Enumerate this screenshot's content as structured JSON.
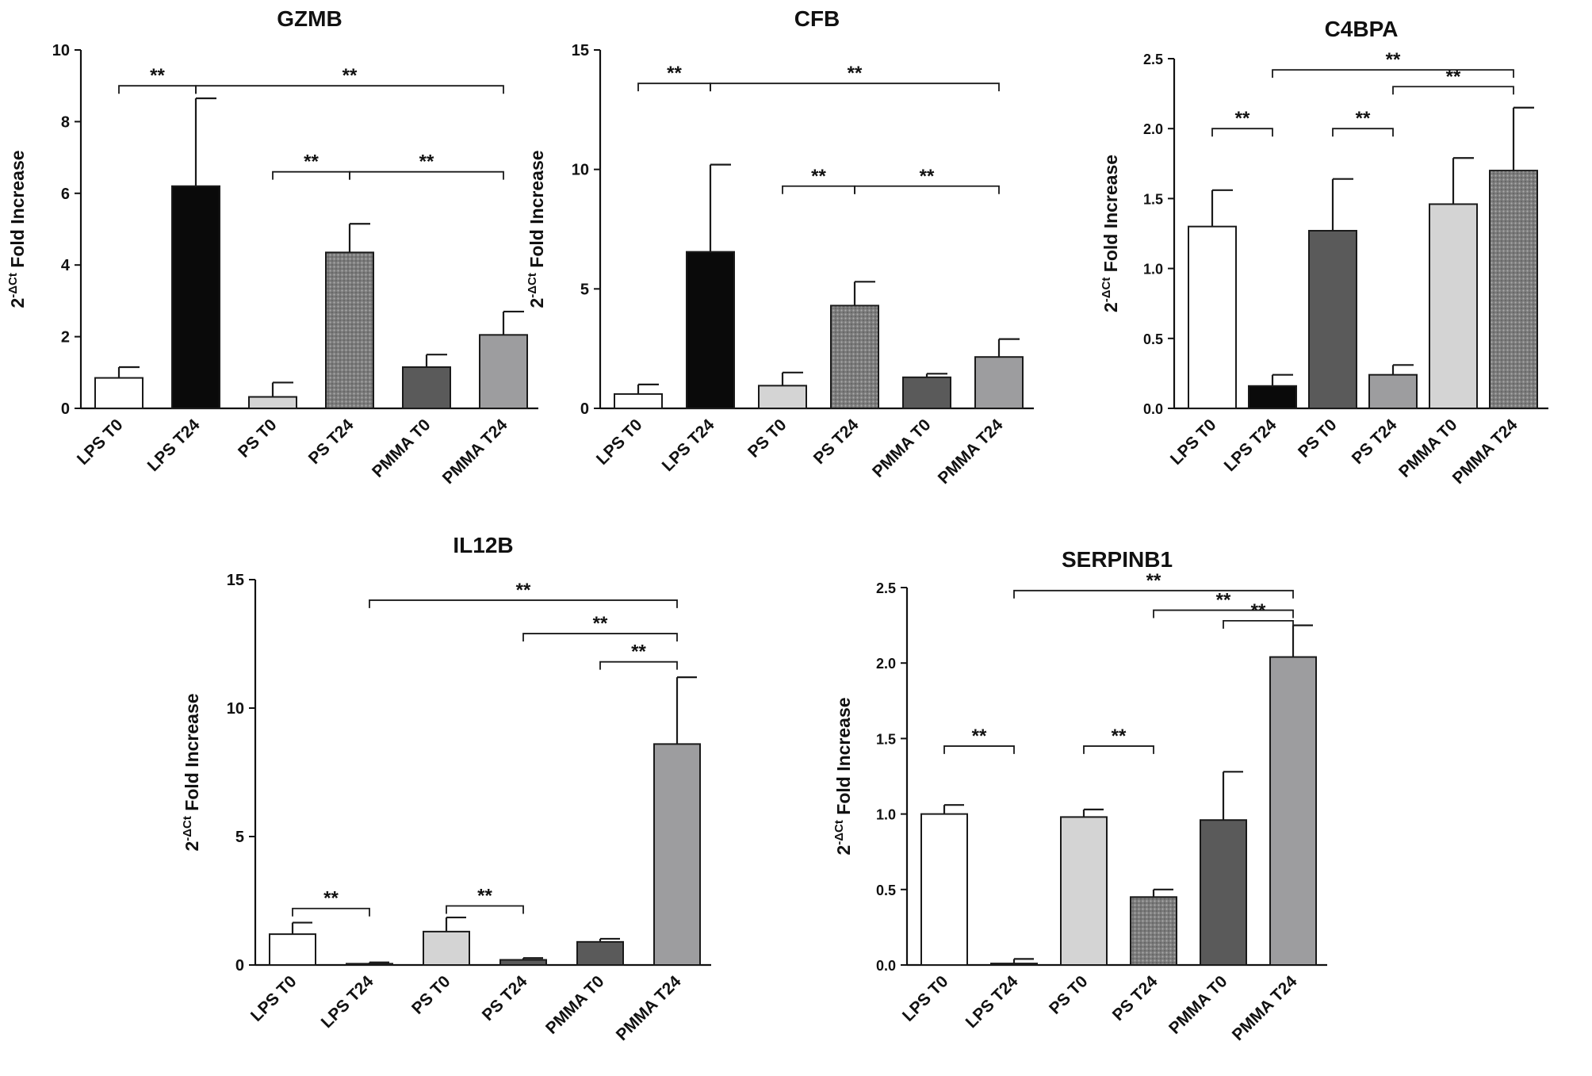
{
  "chart_data": [
    {
      "type": "bar",
      "title": "GZMB",
      "ylabel_base": "2",
      "ylabel_sup": "-ΔCt",
      "ylabel_rest": " Fold Increase",
      "ylim": [
        0,
        10
      ],
      "yticks": [
        0,
        2,
        4,
        6,
        8,
        10
      ],
      "categories": [
        "LPS T0",
        "LPS T24",
        "PS T0",
        "PS T24",
        "PMMA T0",
        "PMMA T24"
      ],
      "values": [
        0.85,
        6.2,
        0.32,
        4.35,
        1.15,
        2.05
      ],
      "errors": [
        0.3,
        2.45,
        0.4,
        0.8,
        0.35,
        0.65
      ],
      "fills": [
        "white",
        "black",
        "lightgray",
        "dotted",
        "darkgray",
        "midgray"
      ],
      "significance": [
        {
          "from": 0,
          "to": 1,
          "y": 9.0,
          "label": "**"
        },
        {
          "from": 1,
          "to": 5,
          "y": 9.0,
          "label": "**"
        },
        {
          "from": 2,
          "to": 3,
          "y": 6.6,
          "label": "**"
        },
        {
          "from": 3,
          "to": 5,
          "y": 6.6,
          "label": "**"
        }
      ]
    },
    {
      "type": "bar",
      "title": "CFB",
      "ylabel_base": "2",
      "ylabel_sup": "-ΔCt",
      "ylabel_rest": " Fold Increase",
      "ylim": [
        0,
        15
      ],
      "yticks": [
        0,
        5,
        10,
        15
      ],
      "categories": [
        "LPS T0",
        "LPS T24",
        "PS T0",
        "PS T24",
        "PMMA T0",
        "PMMA T24"
      ],
      "values": [
        0.6,
        6.55,
        0.95,
        4.3,
        1.3,
        2.15
      ],
      "errors": [
        0.4,
        3.65,
        0.55,
        1.0,
        0.15,
        0.75
      ],
      "fills": [
        "white",
        "black",
        "lightgray",
        "dotted",
        "darkgray",
        "midgray"
      ],
      "significance": [
        {
          "from": 0,
          "to": 1,
          "y": 13.6,
          "label": "**"
        },
        {
          "from": 1,
          "to": 5,
          "y": 13.6,
          "label": "**"
        },
        {
          "from": 2,
          "to": 3,
          "y": 9.3,
          "label": "**"
        },
        {
          "from": 3,
          "to": 5,
          "y": 9.3,
          "label": "**"
        }
      ]
    },
    {
      "type": "bar",
      "title": "C4BPA",
      "ylabel_base": "2",
      "ylabel_sup": "-ΔCt",
      "ylabel_rest": " Fold Increase",
      "ylim": [
        0,
        2.5
      ],
      "yticks": [
        "0.0",
        "0.5",
        "1.0",
        "1.5",
        "2.0",
        "2.5"
      ],
      "categories": [
        "LPS T0",
        "LPS T24",
        "PS T0",
        "PS T24",
        "PMMA T0",
        "PMMA T24"
      ],
      "values": [
        1.3,
        0.16,
        1.27,
        0.24,
        1.46,
        1.7
      ],
      "errors": [
        0.26,
        0.08,
        0.37,
        0.07,
        0.33,
        0.45
      ],
      "fills": [
        "white",
        "black",
        "darkgray",
        "midgray",
        "lightgray",
        "dotted"
      ],
      "significance": [
        {
          "from": 0,
          "to": 1,
          "y": 2.0,
          "label": "**"
        },
        {
          "from": 2,
          "to": 3,
          "y": 2.0,
          "label": "**"
        },
        {
          "from": 1,
          "to": 5,
          "y": 2.42,
          "label": "**"
        },
        {
          "from": 3,
          "to": 5,
          "y": 2.3,
          "label": "**"
        }
      ]
    },
    {
      "type": "bar",
      "title": "IL12B",
      "ylabel_base": "2",
      "ylabel_sup": "-ΔCt",
      "ylabel_rest": " Fold Increase",
      "ylim": [
        0,
        15
      ],
      "yticks": [
        0,
        5,
        10,
        15
      ],
      "categories": [
        "LPS T0",
        "LPS T24",
        "PS T0",
        "PS T24",
        "PMMA T0",
        "PMMA T24"
      ],
      "values": [
        1.2,
        0.05,
        1.3,
        0.2,
        0.9,
        8.6
      ],
      "errors": [
        0.45,
        0.05,
        0.55,
        0.07,
        0.12,
        2.6
      ],
      "fills": [
        "white",
        "darkgray",
        "lightgray",
        "darkgray",
        "darkgray",
        "midgray"
      ],
      "significance": [
        {
          "from": 0,
          "to": 1,
          "y": 2.2,
          "label": "**"
        },
        {
          "from": 2,
          "to": 3,
          "y": 2.3,
          "label": "**"
        },
        {
          "from": 1,
          "to": 5,
          "y": 14.2,
          "label": "**"
        },
        {
          "from": 3,
          "to": 5,
          "y": 12.9,
          "label": "**"
        },
        {
          "from": 4,
          "to": 5,
          "y": 11.8,
          "label": "**"
        }
      ]
    },
    {
      "type": "bar",
      "title": "SERPINB1",
      "ylabel_base": "2",
      "ylabel_sup": "-ΔCt",
      "ylabel_rest": " Fold Increase",
      "ylim": [
        0,
        2.5
      ],
      "yticks": [
        "0.0",
        "0.5",
        "1.0",
        "1.5",
        "2.0",
        "2.5"
      ],
      "categories": [
        "LPS T0",
        "LPS T24",
        "PS T0",
        "PS T24",
        "PMMA T0",
        "PMMA T24"
      ],
      "values": [
        1.0,
        0.01,
        0.98,
        0.45,
        0.96,
        2.04
      ],
      "errors": [
        0.06,
        0.03,
        0.05,
        0.05,
        0.32,
        0.21
      ],
      "fills": [
        "white",
        "white",
        "lightgray",
        "dotted",
        "darkgray",
        "midgray"
      ],
      "significance": [
        {
          "from": 0,
          "to": 1,
          "y": 1.45,
          "label": "**"
        },
        {
          "from": 2,
          "to": 3,
          "y": 1.45,
          "label": "**"
        },
        {
          "from": 1,
          "to": 5,
          "y": 2.48,
          "label": "**"
        },
        {
          "from": 3,
          "to": 5,
          "y": 2.35,
          "label": "**"
        },
        {
          "from": 4,
          "to": 5,
          "y": 2.28,
          "label": "**"
        }
      ]
    }
  ],
  "colors": {
    "axis": "#111111",
    "black": "#0a0a0a",
    "darkgray": "#5a5a5a",
    "midgray": "#9d9d9f",
    "lightgray": "#d4d4d4",
    "dotted_base": "#7a7a7a",
    "dotted_dot": "#a8a8a8",
    "white": "#ffffff"
  }
}
